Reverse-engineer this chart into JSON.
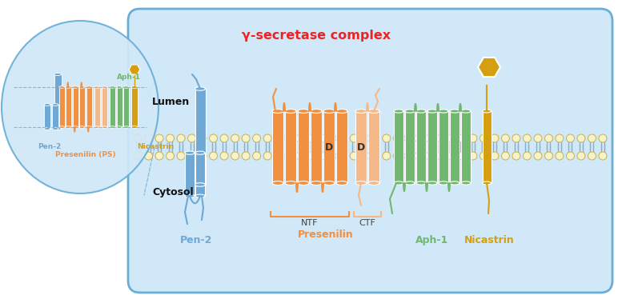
{
  "title": "γ-secretase complex",
  "title_color": "#EE2222",
  "bg_color": "#FFFFFF",
  "main_panel_bg": "#D0E8F8",
  "main_panel_border": "#6AAED6",
  "inset_bg": "#D0E8F8",
  "inset_border": "#6AAED6",
  "lipid_bead_color": "#F8F2C8",
  "lipid_bead_border": "#C8B050",
  "lipid_tail_color": "#8AAFC8",
  "pen2_color": "#6FA8D4",
  "pen2_dark": "#4A7FA8",
  "presenilin_ntf_color": "#F09040",
  "presenilin_ctf_color": "#F5B888",
  "aph1_color": "#70B870",
  "nicastrin_color": "#D4A010",
  "label_pen2": "Pen-2",
  "label_presenilin": "Presenilin",
  "label_ntf": "NTF",
  "label_ctf": "CTF",
  "label_aph1": "Aph-1",
  "label_nicastrin": "Nicastrin",
  "label_lumen": "Lumen",
  "label_cytosol": "Cytosol",
  "label_ps_inset": "Presenilin (PS)",
  "label_pen2_inset": "Pen-2",
  "label_aph1_inset": "Aph-1",
  "label_nicastrin_inset": "Nicastrin"
}
